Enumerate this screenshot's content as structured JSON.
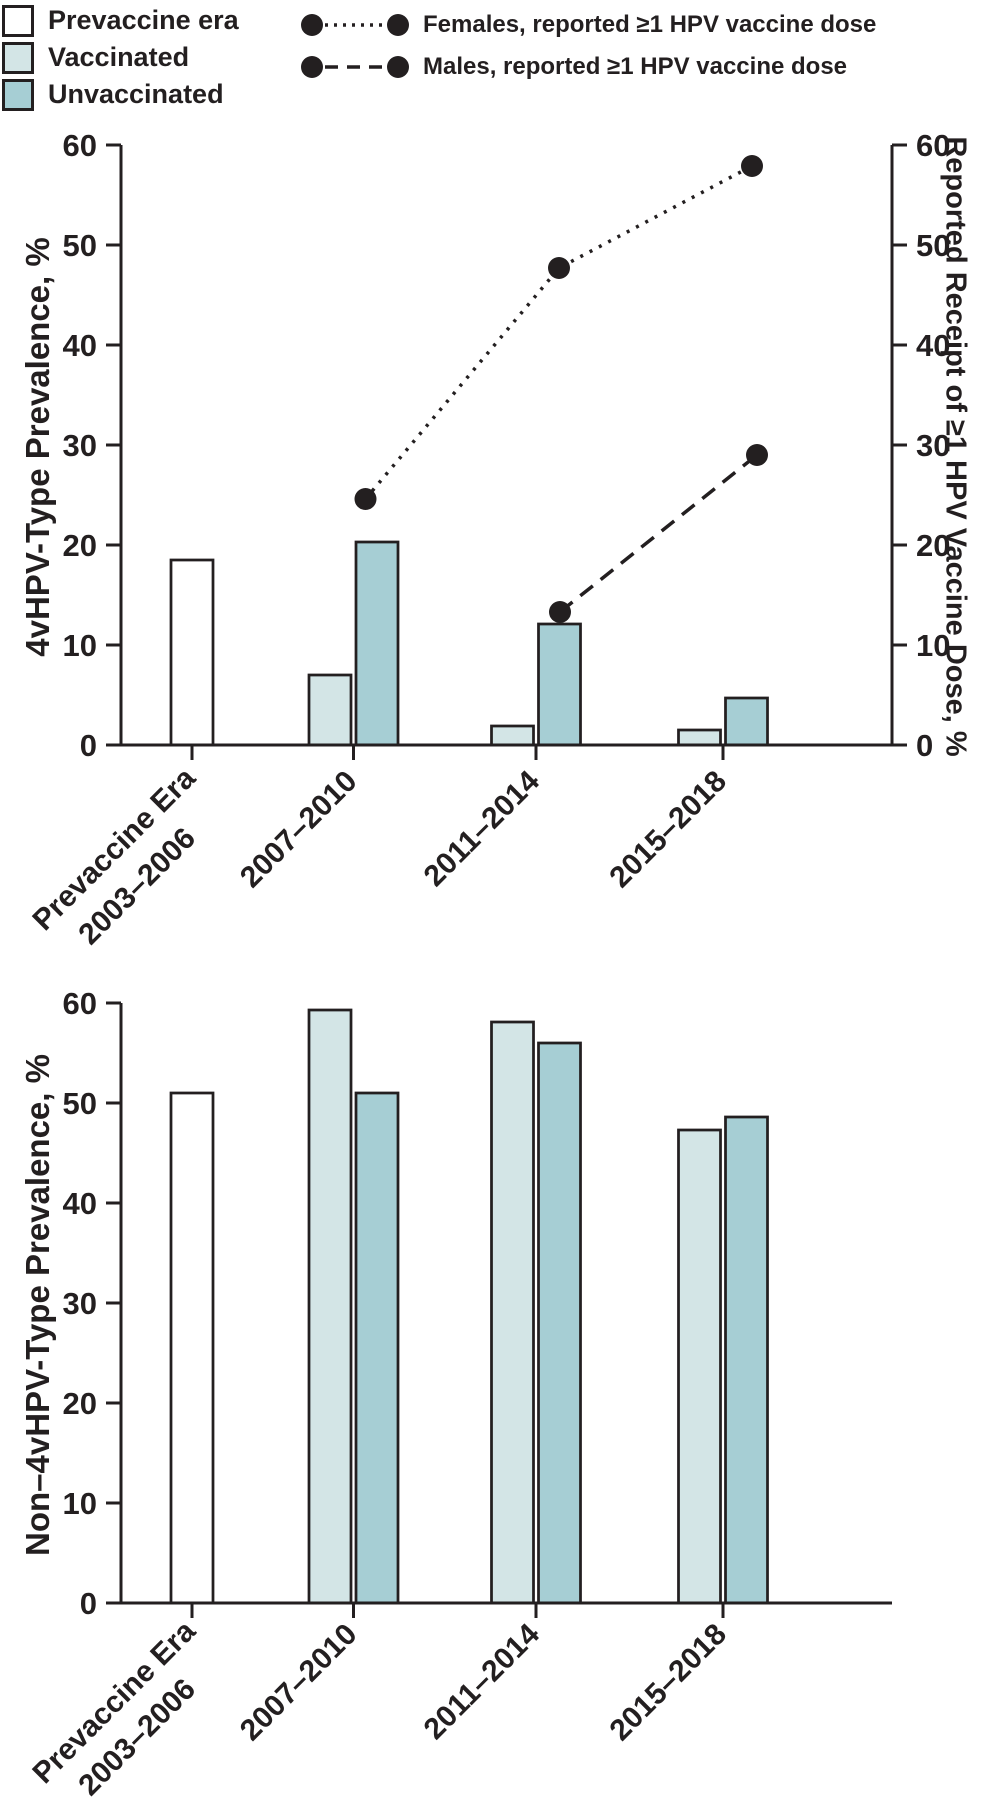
{
  "colors": {
    "ink": "#231f20",
    "background": "#ffffff",
    "prevaccine": "#ffffff",
    "vaccinated": "#d3e5e6",
    "unvaccinated": "#a6ced4"
  },
  "legend": {
    "bar_items": [
      {
        "label": "Prevaccine era",
        "color_key": "prevaccine"
      },
      {
        "label": "Vaccinated",
        "color_key": "vaccinated"
      },
      {
        "label": "Unvaccinated",
        "color_key": "unvaccinated"
      }
    ],
    "line_items": [
      {
        "label": "Females, reported ≥1 HPV vaccine dose",
        "style": "dotted"
      },
      {
        "label": "Males, reported ≥1 HPV vaccine dose",
        "style": "dashed"
      }
    ]
  },
  "chart_data": [
    {
      "type": "bar+line",
      "title": "",
      "ylabel_left": "4vHPV-Type Prevalence, %",
      "ylabel_right": "Reported Receipt of ≥1 HPV Vaccine Dose, %",
      "ylim": [
        0,
        60
      ],
      "y_ticks": [
        0,
        10,
        20,
        30,
        40,
        50,
        60
      ],
      "grid": false,
      "categories": [
        "Prevaccine Era\n2003–2006",
        "2007–2010",
        "2011–2014",
        "2015–2018"
      ],
      "bar_series": [
        {
          "name": "Prevaccine era",
          "color_key": "prevaccine",
          "values": [
            18.5,
            null,
            null,
            null
          ]
        },
        {
          "name": "Vaccinated",
          "color_key": "vaccinated",
          "values": [
            null,
            7.0,
            1.9,
            1.5
          ]
        },
        {
          "name": "Unvaccinated",
          "color_key": "unvaccinated",
          "values": [
            null,
            20.3,
            12.1,
            4.7
          ]
        }
      ],
      "line_series": [
        {
          "name": "Females, reported ≥1 HPV vaccine dose",
          "style": "dotted",
          "values": [
            null,
            24.6,
            47.7,
            57.9
          ]
        },
        {
          "name": "Males, reported ≥1 HPV vaccine dose",
          "style": "dashed",
          "values": [
            null,
            null,
            13.3,
            29.0
          ]
        }
      ]
    },
    {
      "type": "bar",
      "title": "",
      "ylabel_left": "Non–4vHPV-Type Prevalence, %",
      "ylim": [
        0,
        60
      ],
      "y_ticks": [
        0,
        10,
        20,
        30,
        40,
        50,
        60
      ],
      "grid": false,
      "categories": [
        "Prevaccine Era\n2003–2006",
        "2007–2010",
        "2011–2014",
        "2015–2018"
      ],
      "bar_series": [
        {
          "name": "Prevaccine era",
          "color_key": "prevaccine",
          "values": [
            51.0,
            null,
            null,
            null
          ]
        },
        {
          "name": "Vaccinated",
          "color_key": "vaccinated",
          "values": [
            null,
            59.3,
            58.1,
            47.3
          ]
        },
        {
          "name": "Unvaccinated",
          "color_key": "unvaccinated",
          "values": [
            null,
            51.0,
            56.0,
            48.6
          ]
        }
      ]
    }
  ]
}
